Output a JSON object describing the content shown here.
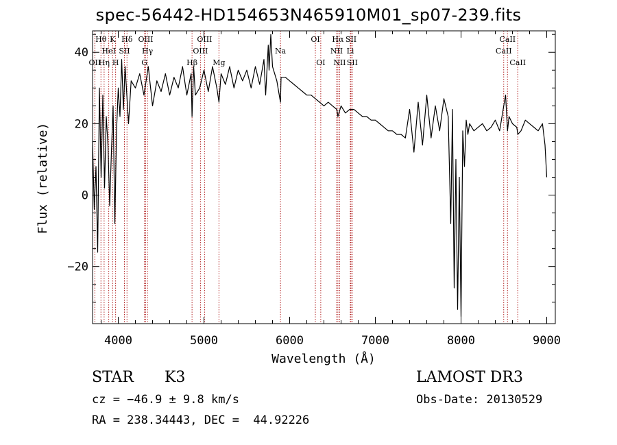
{
  "chart_data": {
    "type": "line",
    "title": "spec-56442-HD154653N465910M01_sp07-239.fits",
    "xlabel": "Wavelength (Å)",
    "ylabel": "Flux (relative)",
    "xlim": [
      3700,
      9100
    ],
    "ylim": [
      -36,
      46
    ],
    "x_ticks": [
      4000,
      5000,
      6000,
      7000,
      8000,
      9000
    ],
    "y_ticks": [
      -20,
      0,
      20,
      40
    ],
    "grid": false,
    "series": [
      {
        "name": "spectrum",
        "x": [
          3700,
          3720,
          3740,
          3760,
          3780,
          3800,
          3820,
          3840,
          3860,
          3880,
          3900,
          3920,
          3940,
          3960,
          3980,
          4000,
          4020,
          4040,
          4060,
          4080,
          4100,
          4120,
          4150,
          4200,
          4250,
          4300,
          4350,
          4400,
          4450,
          4500,
          4550,
          4600,
          4650,
          4700,
          4750,
          4800,
          4850,
          4861,
          4880,
          4900,
          4950,
          5000,
          5050,
          5100,
          5150,
          5175,
          5200,
          5250,
          5300,
          5350,
          5400,
          5450,
          5500,
          5550,
          5600,
          5650,
          5700,
          5720,
          5750,
          5760,
          5780,
          5800,
          5850,
          5893,
          5900,
          5950,
          6000,
          6050,
          6100,
          6150,
          6200,
          6250,
          6300,
          6350,
          6400,
          6450,
          6500,
          6550,
          6563,
          6600,
          6650,
          6700,
          6750,
          6800,
          6850,
          6900,
          6950,
          7000,
          7050,
          7100,
          7150,
          7200,
          7250,
          7300,
          7350,
          7400,
          7450,
          7500,
          7550,
          7600,
          7650,
          7700,
          7750,
          7800,
          7850,
          7880,
          7900,
          7920,
          7940,
          7960,
          7980,
          8000,
          8020,
          8040,
          8060,
          8080,
          8100,
          8150,
          8200,
          8250,
          8300,
          8350,
          8400,
          8450,
          8498,
          8520,
          8542,
          8560,
          8600,
          8650,
          8662,
          8700,
          8750,
          8800,
          8850,
          8900,
          8950,
          8980,
          9000
        ],
        "values": [
          15,
          -4,
          8,
          -16,
          30,
          5,
          28,
          2,
          22,
          14,
          -3,
          12,
          25,
          -8,
          18,
          30,
          22,
          38,
          24,
          36,
          28,
          20,
          32,
          30,
          34,
          28,
          36,
          25,
          32,
          29,
          34,
          28,
          33,
          30,
          36,
          28,
          34,
          22,
          36,
          28,
          30,
          35,
          29,
          36,
          30,
          26,
          34,
          31,
          36,
          30,
          35,
          32,
          35,
          30,
          36,
          31,
          38,
          28,
          42,
          35,
          45,
          36,
          32,
          26,
          33,
          33,
          32,
          31,
          30,
          29,
          28,
          28,
          27,
          26,
          25,
          26,
          25,
          24,
          22,
          25,
          23,
          24,
          24,
          23,
          22,
          22,
          21,
          21,
          20,
          19,
          18,
          18,
          17,
          17,
          16,
          24,
          12,
          26,
          14,
          28,
          16,
          25,
          18,
          27,
          22,
          -8,
          24,
          -26,
          10,
          -32,
          5,
          -34,
          18,
          8,
          21,
          17,
          20,
          18,
          19,
          20,
          18,
          19,
          21,
          18,
          25,
          28,
          18,
          22,
          20,
          19,
          17,
          18,
          21,
          20,
          19,
          18,
          20,
          14,
          5
        ]
      }
    ],
    "line_annotations": [
      {
        "label": "Hθ",
        "wl": 3798,
        "row": 1
      },
      {
        "label": "OII",
        "wl": 3727,
        "row": 3
      },
      {
        "label": "Hη",
        "wl": 3835,
        "row": 3
      },
      {
        "label": "HeI",
        "wl": 3889,
        "row": 2
      },
      {
        "label": "K",
        "wl": 3934,
        "row": 1
      },
      {
        "label": "H",
        "wl": 3969,
        "row": 3
      },
      {
        "label": "SII",
        "wl": 4072,
        "row": 2
      },
      {
        "label": "Hδ",
        "wl": 4102,
        "row": 1
      },
      {
        "label": "OIII",
        "wl": 4320,
        "row": 1
      },
      {
        "label": "Hγ",
        "wl": 4341,
        "row": 2
      },
      {
        "label": "G",
        "wl": 4305,
        "row": 3
      },
      {
        "label": "Hβ",
        "wl": 4861,
        "row": 3
      },
      {
        "label": "OIII",
        "wl": 4959,
        "row": 2
      },
      {
        "label": "OIII",
        "wl": 5007,
        "row": 1
      },
      {
        "label": "Mg",
        "wl": 5175,
        "row": 3
      },
      {
        "label": "Na",
        "wl": 5893,
        "row": 2
      },
      {
        "label": "OI",
        "wl": 6300,
        "row": 1
      },
      {
        "label": "OI",
        "wl": 6363,
        "row": 3
      },
      {
        "label": "NII",
        "wl": 6548,
        "row": 2
      },
      {
        "label": "Hα",
        "wl": 6563,
        "row": 1
      },
      {
        "label": "NII",
        "wl": 6583,
        "row": 3
      },
      {
        "label": "SII",
        "wl": 6716,
        "row": 1
      },
      {
        "label": "Li",
        "wl": 6708,
        "row": 2
      },
      {
        "label": "SII",
        "wl": 6731,
        "row": 3
      },
      {
        "label": "CaII",
        "wl": 8498,
        "row": 2
      },
      {
        "label": "CaII",
        "wl": 8542,
        "row": 1
      },
      {
        "label": "CaII",
        "wl": 8662,
        "row": 3
      }
    ]
  },
  "info": {
    "object_class": "STAR",
    "subclass": "K3",
    "survey": "LAMOST DR3",
    "redshift_line": "cz = −46.9 ± 9.8 km/s",
    "obs_date_line": "Obs-Date: 20130529",
    "coords_line": "RA = 238.34443, DEC =  44.92226"
  },
  "colors": {
    "line": "#000000",
    "marker": "#b22222"
  }
}
